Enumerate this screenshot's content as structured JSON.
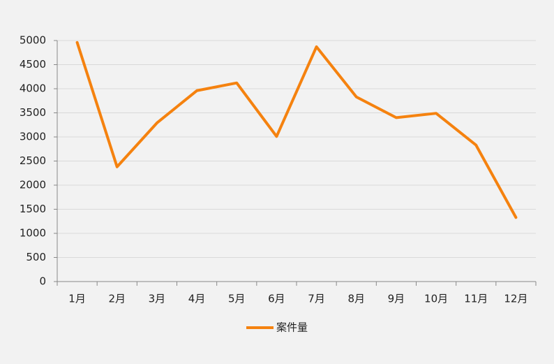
{
  "chart_data": {
    "type": "line",
    "categories": [
      "1月",
      "2月",
      "3月",
      "4月",
      "5月",
      "6月",
      "7月",
      "8月",
      "9月",
      "10月",
      "11月",
      "12月"
    ],
    "series": [
      {
        "name": "案件量",
        "color": "#f5820f",
        "values": [
          4960,
          2380,
          3290,
          3960,
          4120,
          3010,
          4870,
          3830,
          3400,
          3490,
          2830,
          1330
        ]
      }
    ],
    "ylim": [
      0,
      5000
    ],
    "yticks": [
      0,
      500,
      1000,
      1500,
      2000,
      2500,
      3000,
      3500,
      4000,
      4500,
      5000
    ],
    "grid": true,
    "legend": "bottom"
  }
}
